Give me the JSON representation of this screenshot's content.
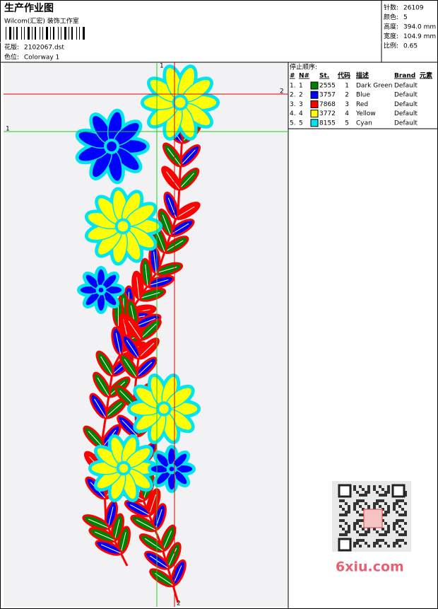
{
  "header": {
    "title": "生产作业图",
    "studio": "Wilcom(汇宏) 装饰工作室",
    "design_label": "花版:",
    "design": "2102067.dst",
    "colorway_label": "色位:",
    "colorway": "Colorway 1"
  },
  "stats": [
    {
      "label": "针数:",
      "value": "26109"
    },
    {
      "label": "颜色:",
      "value": "5"
    },
    {
      "label": "高度:",
      "value": "394.0 mm"
    },
    {
      "label": "宽度:",
      "value": "104.9 mm"
    },
    {
      "label": "比例:",
      "value": "0.65"
    }
  ],
  "guides": {
    "green_vertical": "1",
    "green_horizontal": "1",
    "red_horizontal": "2",
    "red_vertical": "2"
  },
  "stop_sequence": {
    "title": "停止顺序:",
    "columns": [
      "#",
      "N#",
      "St.",
      "代码",
      "描述",
      "Brand",
      "元素"
    ],
    "rows": [
      {
        "index": "1.",
        "n": "1",
        "color": "#008000",
        "stitches": "2555",
        "code": "1",
        "description": "Dark Green",
        "brand": "Default"
      },
      {
        "index": "2.",
        "n": "2",
        "color": "#0000ff",
        "stitches": "3757",
        "code": "2",
        "description": "Blue",
        "brand": "Default"
      },
      {
        "index": "3.",
        "n": "3",
        "color": "#ff0000",
        "stitches": "7868",
        "code": "3",
        "description": "Red",
        "brand": "Default"
      },
      {
        "index": "4.",
        "n": "4",
        "color": "#ffff00",
        "stitches": "3772",
        "code": "4",
        "description": "Yellow",
        "brand": "Default"
      },
      {
        "index": "5.",
        "n": "5",
        "color": "#00e5f0",
        "stitches": "8155",
        "code": "5",
        "description": "Cyan",
        "brand": "Default"
      }
    ]
  },
  "watermark": "6xiu.com"
}
